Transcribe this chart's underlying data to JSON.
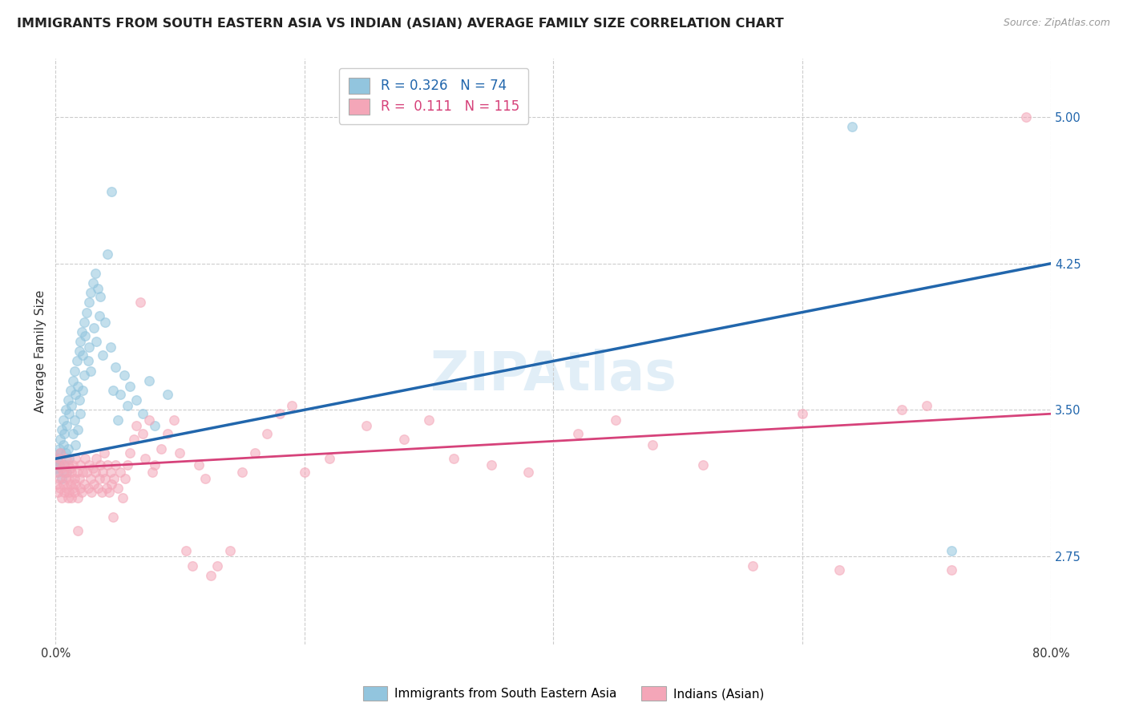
{
  "title": "IMMIGRANTS FROM SOUTH EASTERN ASIA VS INDIAN (ASIAN) AVERAGE FAMILY SIZE CORRELATION CHART",
  "source": "Source: ZipAtlas.com",
  "ylabel": "Average Family Size",
  "yticks": [
    2.75,
    3.5,
    4.25,
    5.0
  ],
  "ytick_labels": [
    "2.75",
    "3.50",
    "4.25",
    "5.00"
  ],
  "xlim": [
    0.0,
    0.8
  ],
  "ylim": [
    2.3,
    5.3
  ],
  "legend1_label": "Immigrants from South Eastern Asia",
  "legend2_label": "Indians (Asian)",
  "r1": 0.326,
  "n1": 74,
  "r2": 0.111,
  "n2": 115,
  "blue_color": "#92c5de",
  "pink_color": "#f4a6b8",
  "blue_line_color": "#2166ac",
  "pink_line_color": "#d6427a",
  "blue_line_x0": 0.0,
  "blue_line_y0": 3.25,
  "blue_line_x1": 0.8,
  "blue_line_y1": 4.25,
  "pink_line_x0": 0.0,
  "pink_line_y0": 3.2,
  "pink_line_x1": 0.8,
  "pink_line_y1": 3.48,
  "blue_scatter": [
    [
      0.001,
      3.2
    ],
    [
      0.002,
      3.25
    ],
    [
      0.002,
      3.18
    ],
    [
      0.003,
      3.3
    ],
    [
      0.003,
      3.22
    ],
    [
      0.004,
      3.35
    ],
    [
      0.004,
      3.28
    ],
    [
      0.005,
      3.4
    ],
    [
      0.005,
      3.15
    ],
    [
      0.006,
      3.45
    ],
    [
      0.006,
      3.32
    ],
    [
      0.007,
      3.38
    ],
    [
      0.007,
      3.22
    ],
    [
      0.008,
      3.5
    ],
    [
      0.008,
      3.28
    ],
    [
      0.009,
      3.42
    ],
    [
      0.009,
      3.18
    ],
    [
      0.01,
      3.55
    ],
    [
      0.01,
      3.3
    ],
    [
      0.011,
      3.48
    ],
    [
      0.011,
      3.25
    ],
    [
      0.012,
      3.6
    ],
    [
      0.013,
      3.52
    ],
    [
      0.014,
      3.65
    ],
    [
      0.014,
      3.38
    ],
    [
      0.015,
      3.7
    ],
    [
      0.015,
      3.45
    ],
    [
      0.016,
      3.58
    ],
    [
      0.016,
      3.32
    ],
    [
      0.017,
      3.75
    ],
    [
      0.018,
      3.62
    ],
    [
      0.018,
      3.4
    ],
    [
      0.019,
      3.8
    ],
    [
      0.019,
      3.55
    ],
    [
      0.02,
      3.85
    ],
    [
      0.02,
      3.48
    ],
    [
      0.021,
      3.9
    ],
    [
      0.022,
      3.78
    ],
    [
      0.022,
      3.6
    ],
    [
      0.023,
      3.95
    ],
    [
      0.023,
      3.68
    ],
    [
      0.024,
      3.88
    ],
    [
      0.025,
      4.0
    ],
    [
      0.026,
      3.75
    ],
    [
      0.027,
      4.05
    ],
    [
      0.027,
      3.82
    ],
    [
      0.028,
      4.1
    ],
    [
      0.028,
      3.7
    ],
    [
      0.03,
      4.15
    ],
    [
      0.031,
      3.92
    ],
    [
      0.032,
      4.2
    ],
    [
      0.033,
      3.85
    ],
    [
      0.034,
      4.12
    ],
    [
      0.035,
      3.98
    ],
    [
      0.036,
      4.08
    ],
    [
      0.038,
      3.78
    ],
    [
      0.04,
      3.95
    ],
    [
      0.042,
      4.3
    ],
    [
      0.044,
      3.82
    ],
    [
      0.045,
      4.62
    ],
    [
      0.046,
      3.6
    ],
    [
      0.048,
      3.72
    ],
    [
      0.05,
      3.45
    ],
    [
      0.052,
      3.58
    ],
    [
      0.055,
      3.68
    ],
    [
      0.058,
      3.52
    ],
    [
      0.06,
      3.62
    ],
    [
      0.065,
      3.55
    ],
    [
      0.07,
      3.48
    ],
    [
      0.075,
      3.65
    ],
    [
      0.08,
      3.42
    ],
    [
      0.09,
      3.58
    ],
    [
      0.64,
      4.95
    ],
    [
      0.72,
      2.78
    ]
  ],
  "pink_scatter": [
    [
      0.001,
      3.18
    ],
    [
      0.001,
      3.12
    ],
    [
      0.002,
      3.22
    ],
    [
      0.002,
      3.08
    ],
    [
      0.003,
      3.25
    ],
    [
      0.003,
      3.15
    ],
    [
      0.004,
      3.28
    ],
    [
      0.004,
      3.1
    ],
    [
      0.005,
      3.2
    ],
    [
      0.005,
      3.05
    ],
    [
      0.006,
      3.18
    ],
    [
      0.006,
      3.12
    ],
    [
      0.007,
      3.22
    ],
    [
      0.007,
      3.08
    ],
    [
      0.008,
      3.25
    ],
    [
      0.008,
      3.15
    ],
    [
      0.009,
      3.18
    ],
    [
      0.009,
      3.1
    ],
    [
      0.01,
      3.22
    ],
    [
      0.01,
      3.05
    ],
    [
      0.011,
      3.15
    ],
    [
      0.011,
      3.08
    ],
    [
      0.012,
      3.2
    ],
    [
      0.012,
      3.12
    ],
    [
      0.013,
      3.18
    ],
    [
      0.013,
      3.05
    ],
    [
      0.014,
      3.22
    ],
    [
      0.014,
      3.1
    ],
    [
      0.015,
      3.15
    ],
    [
      0.015,
      3.08
    ],
    [
      0.016,
      3.25
    ],
    [
      0.016,
      3.12
    ],
    [
      0.017,
      3.18
    ],
    [
      0.018,
      3.05
    ],
    [
      0.018,
      2.88
    ],
    [
      0.019,
      3.15
    ],
    [
      0.02,
      3.1
    ],
    [
      0.02,
      3.22
    ],
    [
      0.021,
      3.08
    ],
    [
      0.022,
      3.18
    ],
    [
      0.023,
      3.12
    ],
    [
      0.024,
      3.25
    ],
    [
      0.025,
      3.18
    ],
    [
      0.026,
      3.1
    ],
    [
      0.027,
      3.22
    ],
    [
      0.028,
      3.15
    ],
    [
      0.029,
      3.08
    ],
    [
      0.03,
      3.2
    ],
    [
      0.031,
      3.12
    ],
    [
      0.032,
      3.18
    ],
    [
      0.033,
      3.25
    ],
    [
      0.034,
      3.1
    ],
    [
      0.035,
      3.15
    ],
    [
      0.036,
      3.22
    ],
    [
      0.037,
      3.08
    ],
    [
      0.038,
      3.18
    ],
    [
      0.039,
      3.28
    ],
    [
      0.04,
      3.15
    ],
    [
      0.041,
      3.1
    ],
    [
      0.042,
      3.22
    ],
    [
      0.043,
      3.08
    ],
    [
      0.044,
      3.18
    ],
    [
      0.045,
      3.12
    ],
    [
      0.046,
      2.95
    ],
    [
      0.047,
      3.15
    ],
    [
      0.048,
      3.22
    ],
    [
      0.05,
      3.1
    ],
    [
      0.052,
      3.18
    ],
    [
      0.054,
      3.05
    ],
    [
      0.056,
      3.15
    ],
    [
      0.058,
      3.22
    ],
    [
      0.06,
      3.28
    ],
    [
      0.063,
      3.35
    ],
    [
      0.065,
      3.42
    ],
    [
      0.068,
      4.05
    ],
    [
      0.07,
      3.38
    ],
    [
      0.072,
      3.25
    ],
    [
      0.075,
      3.45
    ],
    [
      0.078,
      3.18
    ],
    [
      0.08,
      3.22
    ],
    [
      0.085,
      3.3
    ],
    [
      0.09,
      3.38
    ],
    [
      0.095,
      3.45
    ],
    [
      0.1,
      3.28
    ],
    [
      0.105,
      2.78
    ],
    [
      0.11,
      2.7
    ],
    [
      0.115,
      3.22
    ],
    [
      0.12,
      3.15
    ],
    [
      0.125,
      2.65
    ],
    [
      0.13,
      2.7
    ],
    [
      0.14,
      2.78
    ],
    [
      0.15,
      3.18
    ],
    [
      0.16,
      3.28
    ],
    [
      0.17,
      3.38
    ],
    [
      0.18,
      3.48
    ],
    [
      0.19,
      3.52
    ],
    [
      0.2,
      3.18
    ],
    [
      0.22,
      3.25
    ],
    [
      0.25,
      3.42
    ],
    [
      0.28,
      3.35
    ],
    [
      0.3,
      3.45
    ],
    [
      0.32,
      3.25
    ],
    [
      0.35,
      3.22
    ],
    [
      0.38,
      3.18
    ],
    [
      0.42,
      3.38
    ],
    [
      0.45,
      3.45
    ],
    [
      0.48,
      3.32
    ],
    [
      0.52,
      3.22
    ],
    [
      0.56,
      2.7
    ],
    [
      0.6,
      3.48
    ],
    [
      0.63,
      2.68
    ],
    [
      0.68,
      3.5
    ],
    [
      0.7,
      3.52
    ],
    [
      0.72,
      2.68
    ],
    [
      0.78,
      5.0
    ]
  ],
  "watermark": "ZIPAtlas",
  "background_color": "#ffffff",
  "grid_color": "#cccccc",
  "title_fontsize": 11.5,
  "axis_label_fontsize": 11,
  "tick_fontsize": 10.5
}
